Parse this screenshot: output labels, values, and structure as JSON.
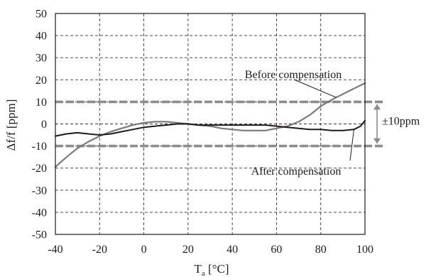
{
  "chart_data": {
    "type": "line",
    "xlabel": "T",
    "xlabel_subscript": "a",
    "xlabel_unit": " [°C]",
    "ylabel": "Δf/f [ppm]",
    "xlim": [
      -40,
      100
    ],
    "ylim": [
      -50,
      50
    ],
    "x_ticks": [
      "-40",
      "-20",
      "0",
      "20",
      "40",
      "60",
      "80",
      "100"
    ],
    "y_ticks": [
      "50",
      "40",
      "30",
      "20",
      "10",
      "0",
      "-10",
      "-20",
      "-30",
      "-40",
      "-50"
    ],
    "grid": true,
    "series": [
      {
        "name": "Before compensation",
        "color": "#7a7a7a",
        "x": [
          -40,
          -35,
          -30,
          -25,
          -20,
          -15,
          -10,
          -5,
          0,
          5,
          10,
          15,
          20,
          25,
          30,
          35,
          40,
          45,
          50,
          55,
          60,
          65,
          70,
          75,
          80,
          85,
          90,
          95,
          100
        ],
        "y": [
          -19.5,
          -15,
          -11,
          -8,
          -5.5,
          -3.5,
          -2,
          -0.5,
          0.5,
          1,
          1,
          0.5,
          0,
          -0.5,
          -1,
          -2,
          -2.5,
          -3,
          -3,
          -3,
          -2,
          -1,
          1,
          4,
          8,
          11,
          13.5,
          16,
          18.5
        ]
      },
      {
        "name": "After compensation",
        "color": "#231815",
        "x": [
          -40,
          -35,
          -30,
          -25,
          -20,
          -15,
          -10,
          -5,
          0,
          5,
          10,
          15,
          20,
          25,
          30,
          35,
          40,
          45,
          50,
          55,
          60,
          65,
          70,
          75,
          80,
          85,
          90,
          95,
          98,
          100
        ],
        "y": [
          -5.5,
          -4.5,
          -4,
          -4.5,
          -5,
          -4.5,
          -3.5,
          -2.5,
          -1.5,
          -1,
          -0.5,
          0,
          0,
          -0.5,
          -0.5,
          -0.5,
          -0.5,
          -0.5,
          -0.5,
          -0.5,
          -1,
          -1.5,
          -2,
          -2.5,
          -2.5,
          -3,
          -3,
          -2.5,
          -1,
          1.5
        ]
      }
    ],
    "limit_lines": [
      10,
      -10
    ],
    "limit_color": "#8c8c8c",
    "range_label": "±10ppm",
    "annotations": [
      {
        "text": "Before compensation",
        "target_series": 0,
        "target_x": 87
      },
      {
        "text": "After compensation",
        "target_series": 1,
        "target_x": 95
      }
    ]
  }
}
